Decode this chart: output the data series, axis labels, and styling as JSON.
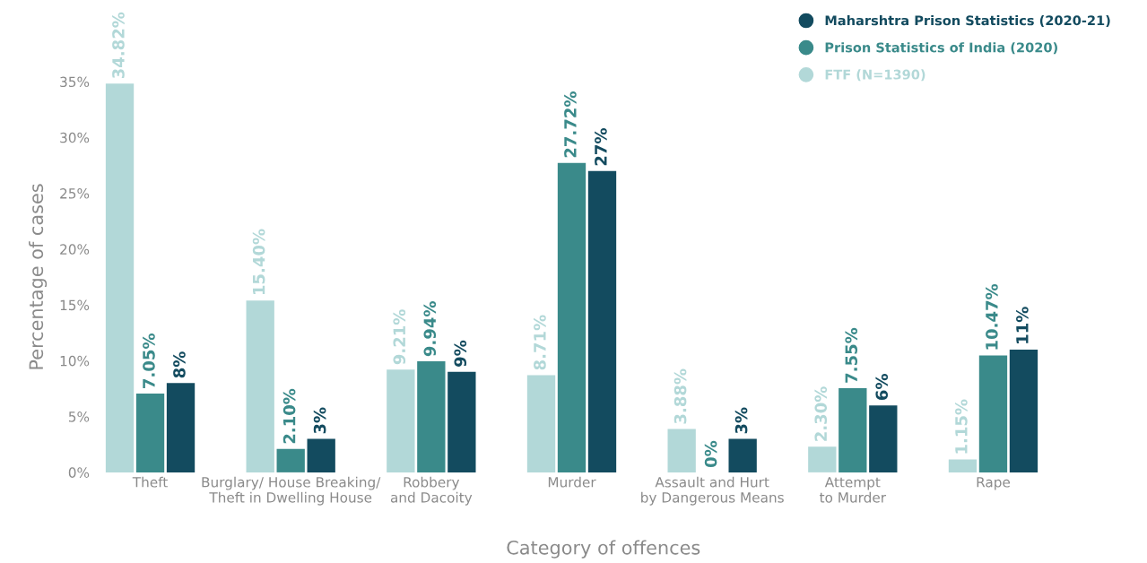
{
  "chart_data": {
    "type": "bar",
    "xlabel": "Category of offences",
    "ylabel": "Percentage of cases",
    "categories": [
      "Theft",
      "Burglary/ House Breaking/\nTheft in Dwelling House",
      "Robbery\nand Dacoity",
      "Murder",
      "Assault and Hurt\nby Dangerous Means",
      "Attempt\nto Murder",
      "Rape"
    ],
    "series": [
      {
        "name": "FTF (N=1390)",
        "color": "#b2d8d8",
        "values": [
          34.82,
          15.4,
          9.21,
          8.71,
          3.88,
          2.3,
          1.15
        ],
        "value_labels": [
          "34.82%",
          "15.40%",
          "9.21%",
          "8.71%",
          "3.88%",
          "2.30%",
          "1.15%"
        ]
      },
      {
        "name": "Prison Statistics of India (2020)",
        "color": "#3a8a8a",
        "values": [
          7.05,
          2.1,
          9.94,
          27.72,
          0,
          7.55,
          10.47
        ],
        "value_labels": [
          "7.05%",
          "2.10%",
          "9.94%",
          "27.72%",
          "0%",
          "7.55%",
          "10.47%"
        ]
      },
      {
        "name": "Maharshtra Prison Statistics (2020-21)",
        "color": "#134b5f",
        "values": [
          8,
          3,
          9,
          27,
          3,
          6,
          11
        ],
        "value_labels": [
          "8%",
          "3%",
          "9%",
          "27%",
          "3%",
          "6%",
          "11%"
        ]
      }
    ],
    "ylim": [
      0,
      35
    ],
    "yticks": [
      {
        "value": 0,
        "label": "0%"
      },
      {
        "value": 5,
        "label": "5%"
      },
      {
        "value": 10,
        "label": "10%"
      },
      {
        "value": 15,
        "label": "15%"
      },
      {
        "value": 20,
        "label": "20%"
      },
      {
        "value": 25,
        "label": "25%"
      },
      {
        "value": 30,
        "label": "30%"
      },
      {
        "value": 35,
        "label": "35%"
      }
    ],
    "grid": false,
    "legend": "top right"
  }
}
